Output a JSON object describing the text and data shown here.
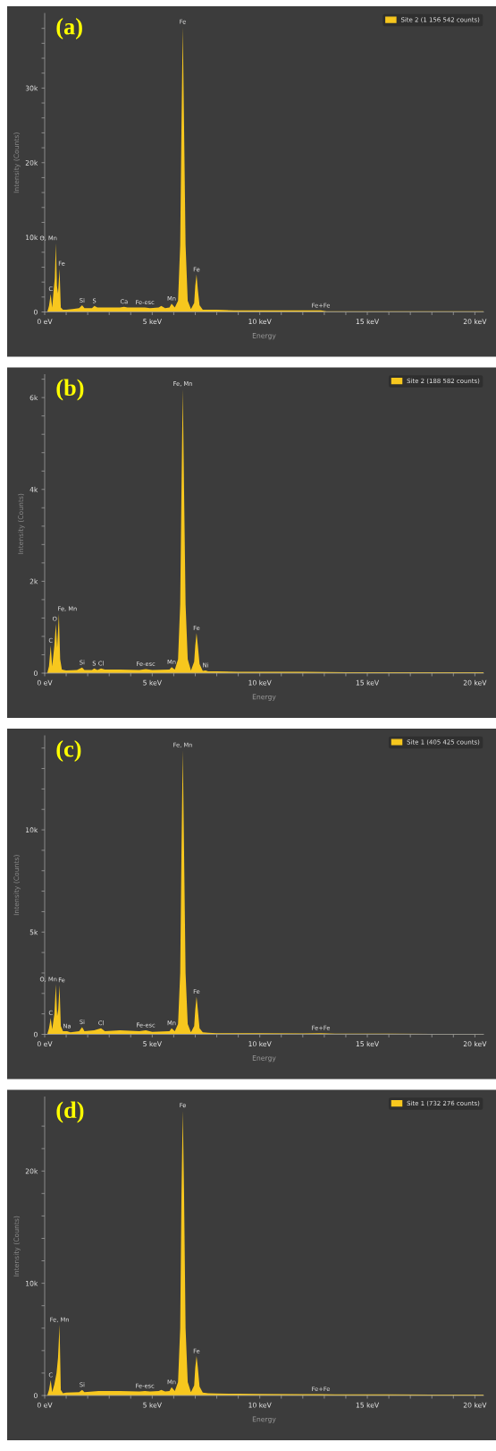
{
  "chart_data": [
    {
      "type": "area",
      "title": "(a)",
      "xlabel": "Energy",
      "ylabel": "Intensity (Counts)",
      "legend": "top right",
      "xlim": [
        0,
        20.4
      ],
      "ylim": [
        0,
        40000
      ],
      "xticks": [
        {
          "value": 0,
          "label": "0 eV"
        },
        {
          "value": 1,
          "label": null
        },
        {
          "value": 2,
          "label": null
        },
        {
          "value": 3,
          "label": null
        },
        {
          "value": 4,
          "label": null
        },
        {
          "value": 5,
          "label": "5 keV"
        },
        {
          "value": 6,
          "label": null
        },
        {
          "value": 7,
          "label": null
        },
        {
          "value": 8,
          "label": null
        },
        {
          "value": 9,
          "label": null
        },
        {
          "value": 10,
          "label": "10 keV"
        },
        {
          "value": 11,
          "label": null
        },
        {
          "value": 12,
          "label": null
        },
        {
          "value": 13,
          "label": null
        },
        {
          "value": 14,
          "label": null
        },
        {
          "value": 15,
          "label": "15 keV"
        },
        {
          "value": 16,
          "label": null
        },
        {
          "value": 17,
          "label": null
        },
        {
          "value": 18,
          "label": null
        },
        {
          "value": 19,
          "label": null
        },
        {
          "value": 20,
          "label": "20 keV"
        }
      ],
      "yticks": [
        0,
        {
          "value": 2000,
          "label": null
        },
        {
          "value": 4000,
          "label": null
        },
        {
          "value": 6000,
          "label": null
        },
        {
          "value": 8000,
          "label": null
        },
        {
          "value": 10000,
          "label": "10k"
        },
        {
          "value": 12000,
          "label": null
        },
        {
          "value": 14000,
          "label": null
        },
        {
          "value": 16000,
          "label": null
        },
        {
          "value": 18000,
          "label": null
        },
        {
          "value": 20000,
          "label": "20k"
        },
        {
          "value": 22000,
          "label": null
        },
        {
          "value": 24000,
          "label": null
        },
        {
          "value": 26000,
          "label": null
        },
        {
          "value": 28000,
          "label": null
        },
        {
          "value": 30000,
          "label": "30k"
        },
        {
          "value": 32000,
          "label": null
        },
        {
          "value": 34000,
          "label": null
        },
        {
          "value": 36000,
          "label": null
        },
        {
          "value": 38000,
          "label": null
        }
      ],
      "series": [
        {
          "name": "Site 2 (1 156 542 counts)",
          "color": "#f7c71e",
          "x": [
            0,
            0.12,
            0.2,
            0.28,
            0.35,
            0.42,
            0.47,
            0.52,
            0.57,
            0.62,
            0.69,
            0.75,
            0.85,
            1.0,
            1.3,
            1.6,
            1.74,
            1.85,
            2.2,
            2.31,
            2.45,
            3.0,
            3.5,
            3.69,
            3.85,
            4.4,
            4.66,
            4.9,
            5.3,
            5.42,
            5.6,
            5.8,
            5.9,
            6.05,
            6.2,
            6.3,
            6.36,
            6.42,
            6.48,
            6.55,
            6.65,
            6.8,
            6.95,
            7.0,
            7.06,
            7.12,
            7.2,
            7.35,
            7.6,
            8.0,
            8.8,
            9.0,
            10.0,
            11.0,
            12.6,
            12.84,
            13.1,
            14.0,
            16.0,
            18.0,
            20.4
          ],
          "values": [
            0,
            0,
            800,
            2400,
            600,
            3000,
            4500,
            9200,
            3500,
            2500,
            5800,
            600,
            300,
            300,
            400,
            500,
            900,
            500,
            500,
            800,
            600,
            600,
            600,
            700,
            600,
            600,
            600,
            500,
            600,
            800,
            500,
            600,
            1100,
            600,
            1500,
            9000,
            25000,
            38200,
            25000,
            9000,
            1500,
            400,
            1200,
            3500,
            5000,
            3000,
            900,
            300,
            300,
            300,
            200,
            200,
            200,
            200,
            200,
            200,
            100,
            100,
            100,
            100,
            100
          ]
        }
      ],
      "annotations": [
        {
          "text": "C",
          "x": 0.28,
          "y": 2400
        },
        {
          "text": "O, Mn",
          "x": 0.52,
          "y": 9200
        },
        {
          "text": "Fe",
          "x": 0.69,
          "y": 5800
        },
        {
          "text": "Si",
          "x": 1.74,
          "y": 850
        },
        {
          "text": "S",
          "x": 2.31,
          "y": 800
        },
        {
          "text": "Ca",
          "x": 3.69,
          "y": 700
        },
        {
          "text": "Fe-esc",
          "x": 4.66,
          "y": 600
        },
        {
          "text": "Mn",
          "x": 5.9,
          "y": 1100
        },
        {
          "text": "Fe",
          "x": 6.42,
          "y": 38200
        },
        {
          "text": "Fe",
          "x": 7.06,
          "y": 5000
        },
        {
          "text": "Fe+Fe",
          "x": 12.84,
          "y": 180
        }
      ]
    },
    {
      "type": "area",
      "title": "(b)",
      "xlabel": "Energy",
      "ylabel": "Intensity (Counts)",
      "legend": "top right",
      "xlim": [
        0,
        20.4
      ],
      "ylim": [
        0,
        6500
      ],
      "xticks": [
        {
          "value": 0,
          "label": "0 eV"
        },
        {
          "value": 1,
          "label": null
        },
        {
          "value": 2,
          "label": null
        },
        {
          "value": 3,
          "label": null
        },
        {
          "value": 4,
          "label": null
        },
        {
          "value": 5,
          "label": "5 keV"
        },
        {
          "value": 6,
          "label": null
        },
        {
          "value": 7,
          "label": null
        },
        {
          "value": 8,
          "label": null
        },
        {
          "value": 9,
          "label": null
        },
        {
          "value": 10,
          "label": "10 keV"
        },
        {
          "value": 11,
          "label": null
        },
        {
          "value": 12,
          "label": null
        },
        {
          "value": 13,
          "label": null
        },
        {
          "value": 14,
          "label": null
        },
        {
          "value": 15,
          "label": "15 keV"
        },
        {
          "value": 16,
          "label": null
        },
        {
          "value": 17,
          "label": null
        },
        {
          "value": 18,
          "label": null
        },
        {
          "value": 19,
          "label": null
        },
        {
          "value": 20,
          "label": "20 keV"
        }
      ],
      "yticks": [
        0,
        {
          "value": 400,
          "label": null
        },
        {
          "value": 800,
          "label": null
        },
        {
          "value": 1200,
          "label": null
        },
        {
          "value": 1600,
          "label": null
        },
        {
          "value": 2000,
          "label": "2k"
        },
        {
          "value": 2400,
          "label": null
        },
        {
          "value": 2800,
          "label": null
        },
        {
          "value": 3200,
          "label": null
        },
        {
          "value": 3600,
          "label": null
        },
        {
          "value": 4000,
          "label": "4k"
        },
        {
          "value": 4400,
          "label": null
        },
        {
          "value": 4800,
          "label": null
        },
        {
          "value": 5200,
          "label": null
        },
        {
          "value": 5600,
          "label": null
        },
        {
          "value": 6000,
          "label": "6k"
        },
        {
          "value": 6400,
          "label": null
        }
      ],
      "series": [
        {
          "name": "Site 2 (188 582 counts)",
          "color": "#f7c71e",
          "x": [
            0,
            0.12,
            0.2,
            0.28,
            0.35,
            0.45,
            0.52,
            0.58,
            0.66,
            0.72,
            0.8,
            1.0,
            1.5,
            1.74,
            1.85,
            2.2,
            2.3,
            2.45,
            2.62,
            2.8,
            3.5,
            4.4,
            4.7,
            5.0,
            5.8,
            5.9,
            6.05,
            6.2,
            6.3,
            6.36,
            6.42,
            6.48,
            6.55,
            6.65,
            6.8,
            6.95,
            7.0,
            7.06,
            7.12,
            7.2,
            7.35,
            7.48,
            7.6,
            8.0,
            9.0,
            10.0,
            12.0,
            14.0,
            16.0,
            18.0,
            20.4
          ],
          "values": [
            0,
            0,
            150,
            600,
            150,
            600,
            1070,
            550,
            1290,
            300,
            80,
            60,
            70,
            120,
            70,
            70,
            100,
            70,
            100,
            80,
            80,
            70,
            90,
            70,
            80,
            130,
            80,
            300,
            1500,
            4000,
            6190,
            4000,
            1500,
            300,
            60,
            250,
            600,
            870,
            600,
            200,
            50,
            60,
            40,
            40,
            30,
            30,
            30,
            20,
            20,
            20,
            20
          ]
        }
      ],
      "annotations": [
        {
          "text": "C",
          "x": 0.28,
          "y": 600
        },
        {
          "text": "O",
          "x": 0.52,
          "y": 1070
        },
        {
          "text": "Fe, Mn",
          "x": 0.66,
          "y": 1290
        },
        {
          "text": "Si",
          "x": 1.74,
          "y": 120
        },
        {
          "text": "S",
          "x": 2.3,
          "y": 100
        },
        {
          "text": "Cl",
          "x": 2.62,
          "y": 100
        },
        {
          "text": "Fe-esc",
          "x": 4.7,
          "y": 90
        },
        {
          "text": "Mn",
          "x": 5.9,
          "y": 130
        },
        {
          "text": "Fe, Mn",
          "x": 6.42,
          "y": 6190
        },
        {
          "text": "Fe",
          "x": 7.06,
          "y": 870
        },
        {
          "text": "Ni",
          "x": 7.48,
          "y": 60
        }
      ]
    },
    {
      "type": "area",
      "title": "(c)",
      "xlabel": "Energy",
      "ylabel": "Intensity (Counts)",
      "legend": "top right",
      "xlim": [
        0,
        20.4
      ],
      "ylim": [
        0,
        14600
      ],
      "xticks": [
        {
          "value": 0,
          "label": "0 eV"
        },
        {
          "value": 1,
          "label": null
        },
        {
          "value": 2,
          "label": null
        },
        {
          "value": 3,
          "label": null
        },
        {
          "value": 4,
          "label": null
        },
        {
          "value": 5,
          "label": "5 keV"
        },
        {
          "value": 6,
          "label": null
        },
        {
          "value": 7,
          "label": null
        },
        {
          "value": 8,
          "label": null
        },
        {
          "value": 9,
          "label": null
        },
        {
          "value": 10,
          "label": "10 keV"
        },
        {
          "value": 11,
          "label": null
        },
        {
          "value": 12,
          "label": null
        },
        {
          "value": 13,
          "label": null
        },
        {
          "value": 14,
          "label": null
        },
        {
          "value": 15,
          "label": "15 keV"
        },
        {
          "value": 16,
          "label": null
        },
        {
          "value": 17,
          "label": null
        },
        {
          "value": 18,
          "label": null
        },
        {
          "value": 19,
          "label": null
        },
        {
          "value": 20,
          "label": "20 keV"
        }
      ],
      "yticks": [
        0,
        {
          "value": 1000,
          "label": null
        },
        {
          "value": 2000,
          "label": null
        },
        {
          "value": 3000,
          "label": null
        },
        {
          "value": 4000,
          "label": null
        },
        {
          "value": 5000,
          "label": "5k"
        },
        {
          "value": 6000,
          "label": null
        },
        {
          "value": 7000,
          "label": null
        },
        {
          "value": 8000,
          "label": null
        },
        {
          "value": 9000,
          "label": null
        },
        {
          "value": 10000,
          "label": "10k"
        },
        {
          "value": 11000,
          "label": null
        },
        {
          "value": 12000,
          "label": null
        },
        {
          "value": 13000,
          "label": null
        },
        {
          "value": 14000,
          "label": null
        }
      ],
      "series": [
        {
          "name": "Site 1 (405 425 counts)",
          "color": "#f7c71e",
          "x": [
            0,
            0.12,
            0.2,
            0.28,
            0.35,
            0.45,
            0.52,
            0.58,
            0.63,
            0.69,
            0.75,
            0.85,
            1.04,
            1.2,
            1.6,
            1.74,
            1.85,
            2.3,
            2.62,
            2.8,
            3.5,
            4.4,
            4.7,
            5.0,
            5.8,
            5.9,
            6.05,
            6.2,
            6.3,
            6.36,
            6.42,
            6.48,
            6.55,
            6.65,
            6.8,
            6.95,
            7.0,
            7.06,
            7.12,
            7.2,
            7.35,
            7.6,
            8.0,
            9.0,
            10.0,
            12.0,
            12.84,
            13.5,
            16.0,
            18.0,
            20.4
          ],
          "values": [
            0,
            0,
            300,
            800,
            250,
            1000,
            2440,
            900,
            1200,
            2400,
            400,
            150,
            150,
            100,
            150,
            350,
            150,
            200,
            300,
            150,
            200,
            150,
            200,
            120,
            150,
            300,
            150,
            500,
            3000,
            9000,
            13900,
            9000,
            3000,
            500,
            100,
            400,
            1200,
            1840,
            1200,
            300,
            100,
            80,
            60,
            50,
            50,
            40,
            60,
            30,
            30,
            20,
            20
          ]
        }
      ],
      "annotations": [
        {
          "text": "C",
          "x": 0.28,
          "y": 800
        },
        {
          "text": "O, Mn",
          "x": 0.52,
          "y": 2440
        },
        {
          "text": "Fe",
          "x": 0.69,
          "y": 2400
        },
        {
          "text": "Na",
          "x": 1.04,
          "y": 150
        },
        {
          "text": "Si",
          "x": 1.74,
          "y": 350
        },
        {
          "text": "Cl",
          "x": 2.62,
          "y": 300
        },
        {
          "text": "Fe-esc",
          "x": 4.7,
          "y": 200
        },
        {
          "text": "Mn",
          "x": 5.9,
          "y": 300
        },
        {
          "text": "Fe, Mn",
          "x": 6.42,
          "y": 13900
        },
        {
          "text": "Fe",
          "x": 7.06,
          "y": 1840
        },
        {
          "text": "Fe+Fe",
          "x": 12.84,
          "y": 60
        }
      ]
    },
    {
      "type": "area",
      "title": "(d)",
      "xlabel": "Energy",
      "ylabel": "Intensity (Counts)",
      "legend": "top right",
      "xlim": [
        0,
        20.4
      ],
      "ylim": [
        0,
        26600
      ],
      "xticks": [
        {
          "value": 0,
          "label": "0 eV"
        },
        {
          "value": 1,
          "label": null
        },
        {
          "value": 2,
          "label": null
        },
        {
          "value": 3,
          "label": null
        },
        {
          "value": 4,
          "label": null
        },
        {
          "value": 5,
          "label": "5 keV"
        },
        {
          "value": 6,
          "label": null
        },
        {
          "value": 7,
          "label": null
        },
        {
          "value": 8,
          "label": null
        },
        {
          "value": 9,
          "label": null
        },
        {
          "value": 10,
          "label": "10 keV"
        },
        {
          "value": 11,
          "label": null
        },
        {
          "value": 12,
          "label": null
        },
        {
          "value": 13,
          "label": null
        },
        {
          "value": 14,
          "label": null
        },
        {
          "value": 15,
          "label": "15 keV"
        },
        {
          "value": 16,
          "label": null
        },
        {
          "value": 17,
          "label": null
        },
        {
          "value": 18,
          "label": null
        },
        {
          "value": 19,
          "label": null
        },
        {
          "value": 20,
          "label": "20 keV"
        }
      ],
      "yticks": [
        0,
        {
          "value": 2000,
          "label": null
        },
        {
          "value": 4000,
          "label": null
        },
        {
          "value": 6000,
          "label": null
        },
        {
          "value": 8000,
          "label": null
        },
        {
          "value": 10000,
          "label": "10k"
        },
        {
          "value": 12000,
          "label": null
        },
        {
          "value": 14000,
          "label": null
        },
        {
          "value": 16000,
          "label": null
        },
        {
          "value": 18000,
          "label": null
        },
        {
          "value": 20000,
          "label": "20k"
        },
        {
          "value": 22000,
          "label": null
        },
        {
          "value": 24000,
          "label": null
        }
      ],
      "series": [
        {
          "name": "Site 1 (732 276 counts)",
          "color": "#f7c71e",
          "x": [
            0,
            0.12,
            0.2,
            0.28,
            0.35,
            0.45,
            0.55,
            0.62,
            0.69,
            0.75,
            0.85,
            1.0,
            1.6,
            1.74,
            1.85,
            2.5,
            3.5,
            4.4,
            4.66,
            4.9,
            5.3,
            5.42,
            5.6,
            5.8,
            5.9,
            6.05,
            6.2,
            6.3,
            6.36,
            6.42,
            6.48,
            6.55,
            6.65,
            6.8,
            6.95,
            7.0,
            7.06,
            7.12,
            7.2,
            7.35,
            7.6,
            8.0,
            9.0,
            10.0,
            12.0,
            12.84,
            13.5,
            16.0,
            18.0,
            20.4
          ],
          "values": [
            0,
            0,
            500,
            1370,
            300,
            1000,
            2000,
            3360,
            6300,
            500,
            200,
            250,
            300,
            500,
            300,
            400,
            400,
            350,
            400,
            350,
            400,
            500,
            350,
            400,
            740,
            400,
            1200,
            6000,
            18000,
            25400,
            18000,
            6000,
            1200,
            300,
            900,
            2500,
            3500,
            2500,
            800,
            250,
            200,
            180,
            150,
            130,
            110,
            120,
            100,
            90,
            80,
            70
          ]
        }
      ],
      "annotations": [
        {
          "text": "C",
          "x": 0.28,
          "y": 1370
        },
        {
          "text": "Fe, Mn",
          "x": 0.69,
          "y": 6300
        },
        {
          "text": "Si",
          "x": 1.74,
          "y": 500
        },
        {
          "text": "Fe-esc",
          "x": 4.66,
          "y": 400
        },
        {
          "text": "Mn",
          "x": 5.9,
          "y": 740
        },
        {
          "text": "Fe",
          "x": 6.42,
          "y": 25400
        },
        {
          "text": "Fe",
          "x": 7.06,
          "y": 3500
        },
        {
          "text": "Fe+Fe",
          "x": 12.84,
          "y": 120
        }
      ]
    }
  ]
}
